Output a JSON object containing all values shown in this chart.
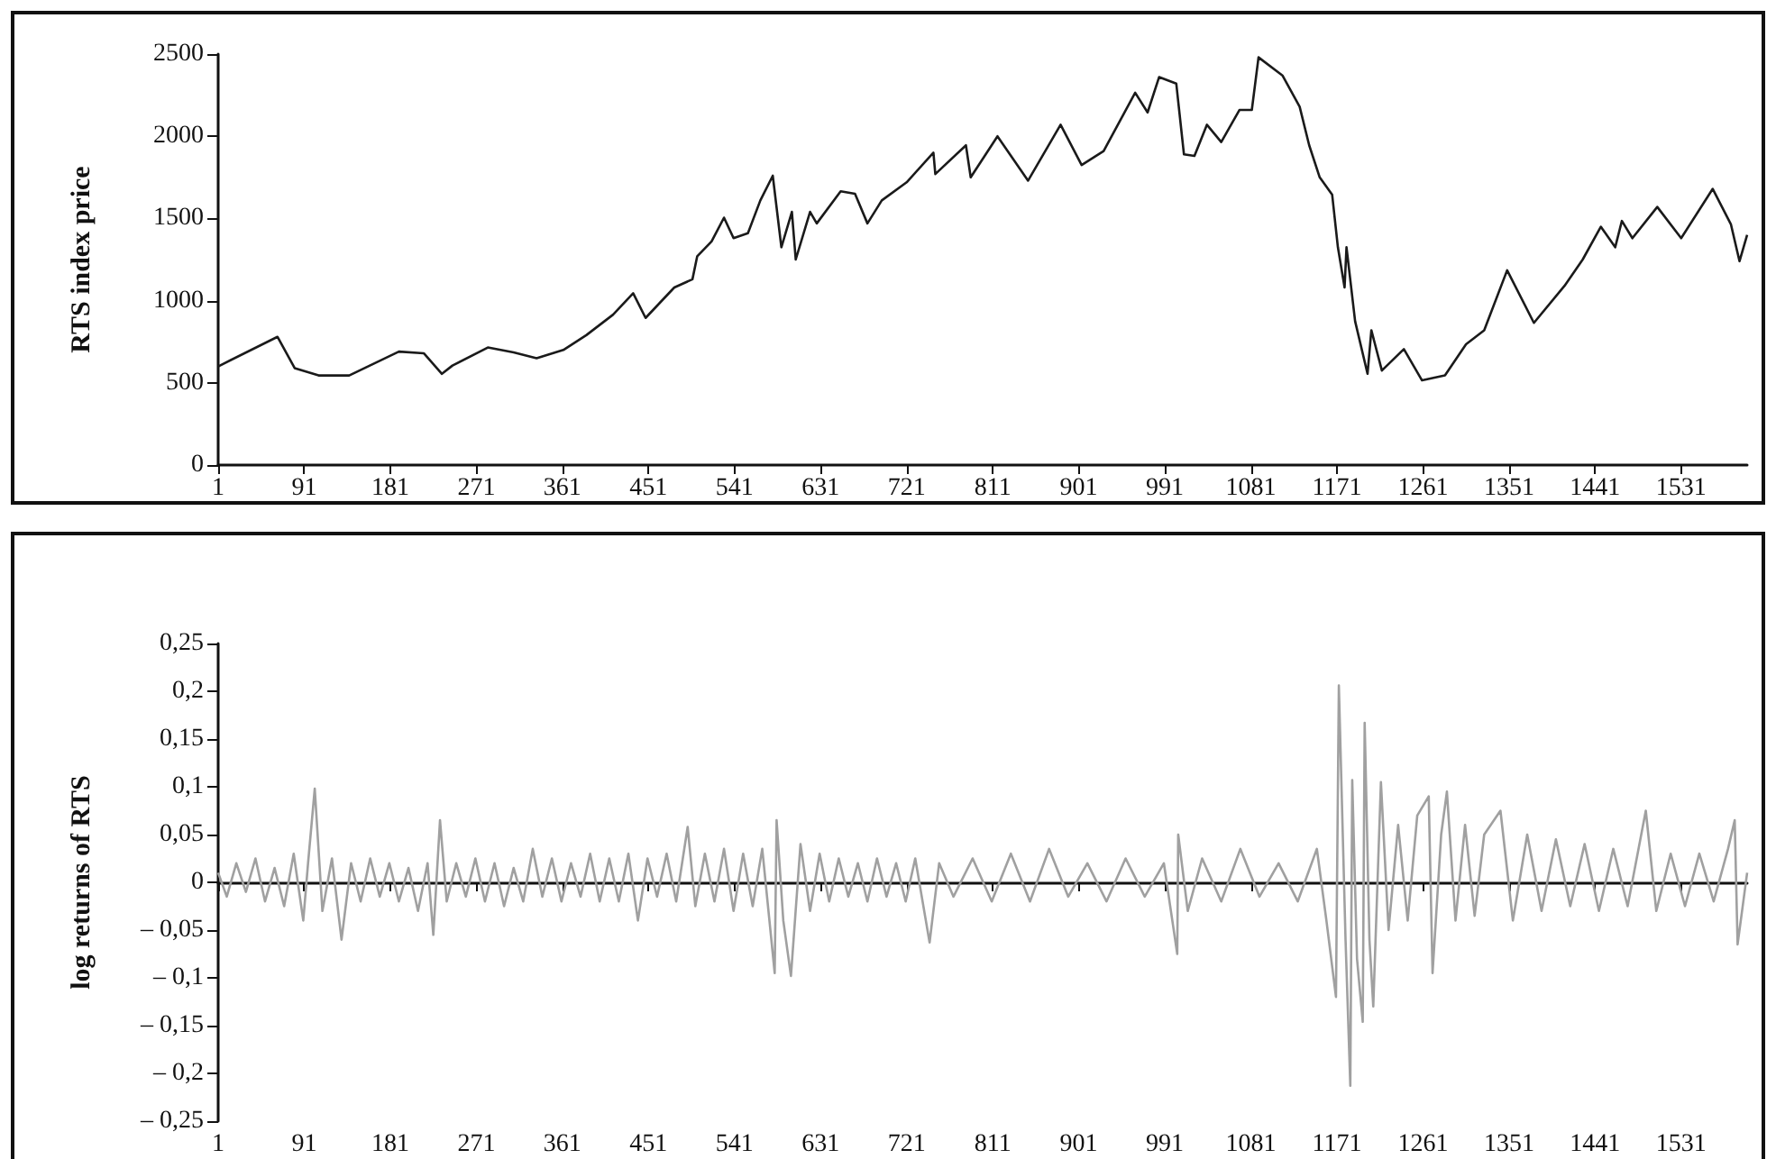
{
  "chart_data": [
    {
      "type": "line",
      "ylabel": "RTS index price",
      "xlim": [
        1,
        1600
      ],
      "xticks": [
        1,
        91,
        181,
        271,
        361,
        451,
        541,
        631,
        721,
        811,
        901,
        991,
        1081,
        1171,
        1261,
        1351,
        1441,
        1531
      ],
      "ylim": [
        0,
        2500
      ],
      "yticks": [
        0,
        500,
        1000,
        1500,
        2000,
        2500
      ],
      "marker": "none",
      "line_style": "solid",
      "x": [
        1,
        63,
        81,
        106,
        138,
        190,
        216,
        235,
        246,
        283,
        310,
        334,
        362,
        386,
        414,
        435,
        448,
        478,
        497,
        502,
        517,
        530,
        540,
        555,
        568,
        581,
        590,
        601,
        605,
        620,
        627,
        652,
        667,
        680,
        695,
        721,
        749,
        751,
        783,
        788,
        816,
        848,
        882,
        904,
        927,
        960,
        973,
        985,
        1003,
        1011,
        1022,
        1035,
        1050,
        1069,
        1082,
        1089,
        1114,
        1132,
        1142,
        1153,
        1166,
        1172,
        1179,
        1181,
        1190,
        1203,
        1207,
        1218,
        1241,
        1260,
        1284,
        1306,
        1325,
        1349,
        1377,
        1409,
        1428,
        1447,
        1462,
        1469,
        1480,
        1506,
        1531,
        1564,
        1583,
        1592,
        1600
      ],
      "series": [
        {
          "color": "#1a1a1a",
          "values": [
            600,
            780,
            590,
            545,
            545,
            690,
            680,
            555,
            605,
            715,
            685,
            650,
            700,
            790,
            915,
            1045,
            895,
            1080,
            1130,
            1270,
            1360,
            1505,
            1380,
            1410,
            1610,
            1760,
            1325,
            1540,
            1250,
            1540,
            1470,
            1665,
            1650,
            1470,
            1610,
            1720,
            1900,
            1770,
            1945,
            1750,
            2000,
            1730,
            2070,
            1825,
            1910,
            2265,
            2145,
            2360,
            2320,
            1890,
            1880,
            2070,
            1965,
            2160,
            2160,
            2480,
            2370,
            2180,
            1945,
            1750,
            1645,
            1325,
            1080,
            1325,
            875,
            555,
            820,
            575,
            705,
            515,
            545,
            735,
            820,
            1185,
            865,
            1090,
            1250,
            1450,
            1325,
            1485,
            1380,
            1570,
            1380,
            1680,
            1465,
            1240,
            1400
          ]
        }
      ]
    },
    {
      "type": "line",
      "ylabel": "log returns of RTS",
      "xlim": [
        1,
        1600
      ],
      "xticks": [
        1,
        91,
        181,
        271,
        361,
        451,
        541,
        631,
        721,
        811,
        901,
        991,
        1081,
        1171,
        1261,
        1351,
        1441,
        1531
      ],
      "ylim": [
        -0.25,
        0.25
      ],
      "yticks": [
        {
          "value": 0.25,
          "label": "0,25"
        },
        {
          "value": 0.2,
          "label": "0,2"
        },
        {
          "value": 0.15,
          "label": "0,15"
        },
        {
          "value": 0.1,
          "label": "0,1"
        },
        {
          "value": 0.05,
          "label": "0,05"
        },
        0,
        {
          "value": -0.05,
          "label": "– 0,05"
        },
        {
          "value": -0.1,
          "label": "– 0,1"
        },
        {
          "value": -0.15,
          "label": "– 0,15"
        },
        {
          "value": -0.2,
          "label": "– 0,2"
        },
        {
          "value": -0.25,
          "label": "– 0,25"
        }
      ],
      "marker": "none",
      "line_style": "solid",
      "x": [
        1,
        10,
        20,
        30,
        40,
        50,
        60,
        70,
        80,
        90,
        95,
        102,
        110,
        120,
        130,
        140,
        150,
        160,
        170,
        180,
        190,
        200,
        210,
        220,
        226,
        233,
        240,
        250,
        260,
        270,
        280,
        290,
        300,
        310,
        320,
        330,
        340,
        350,
        360,
        370,
        380,
        390,
        400,
        410,
        420,
        430,
        440,
        450,
        460,
        470,
        480,
        492,
        500,
        510,
        520,
        530,
        540,
        550,
        560,
        570,
        583,
        585,
        592,
        600,
        610,
        620,
        630,
        640,
        650,
        660,
        670,
        680,
        690,
        700,
        710,
        720,
        730,
        745,
        755,
        770,
        790,
        810,
        830,
        850,
        870,
        890,
        910,
        930,
        950,
        970,
        990,
        1004,
        1005,
        1015,
        1030,
        1050,
        1070,
        1090,
        1110,
        1130,
        1150,
        1160,
        1170,
        1173,
        1180,
        1185,
        1187,
        1192,
        1198,
        1200,
        1205,
        1209,
        1217,
        1225,
        1235,
        1245,
        1255,
        1267,
        1271,
        1280,
        1286,
        1295,
        1305,
        1315,
        1325,
        1342,
        1355,
        1370,
        1385,
        1400,
        1415,
        1430,
        1445,
        1460,
        1475,
        1494,
        1505,
        1520,
        1535,
        1550,
        1565,
        1580,
        1587,
        1590,
        1600
      ],
      "series": [
        {
          "color": "#a0a0a0",
          "values": [
            0.01,
            -0.015,
            0.02,
            -0.01,
            0.025,
            -0.02,
            0.015,
            -0.025,
            0.03,
            -0.04,
            0.02,
            0.098,
            -0.03,
            0.025,
            -0.06,
            0.02,
            -0.02,
            0.025,
            -0.015,
            0.02,
            -0.02,
            0.015,
            -0.03,
            0.02,
            -0.055,
            0.065,
            -0.02,
            0.02,
            -0.015,
            0.025,
            -0.02,
            0.02,
            -0.025,
            0.015,
            -0.02,
            0.035,
            -0.015,
            0.025,
            -0.02,
            0.02,
            -0.015,
            0.03,
            -0.02,
            0.025,
            -0.02,
            0.03,
            -0.04,
            0.025,
            -0.015,
            0.03,
            -0.02,
            0.058,
            -0.025,
            0.03,
            -0.02,
            0.035,
            -0.03,
            0.03,
            -0.025,
            0.035,
            -0.095,
            0.065,
            -0.04,
            -0.098,
            0.04,
            -0.03,
            0.03,
            -0.02,
            0.025,
            -0.015,
            0.02,
            -0.02,
            0.025,
            -0.015,
            0.02,
            -0.02,
            0.025,
            -0.063,
            0.02,
            -0.015,
            0.025,
            -0.02,
            0.03,
            -0.02,
            0.035,
            -0.015,
            0.02,
            -0.02,
            0.025,
            -0.015,
            0.02,
            -0.075,
            0.05,
            -0.03,
            0.025,
            -0.02,
            0.035,
            -0.015,
            0.02,
            -0.02,
            0.035,
            -0.04,
            -0.12,
            0.206,
            -0.06,
            -0.213,
            0.107,
            -0.08,
            -0.146,
            0.167,
            -0.06,
            -0.13,
            0.105,
            -0.05,
            0.06,
            -0.04,
            0.07,
            0.09,
            -0.095,
            0.05,
            0.095,
            -0.04,
            0.06,
            -0.035,
            0.05,
            0.075,
            -0.04,
            0.05,
            -0.03,
            0.045,
            -0.025,
            0.04,
            -0.03,
            0.035,
            -0.025,
            0.075,
            -0.03,
            0.03,
            -0.025,
            0.03,
            -0.02,
            0.035,
            0.065,
            -0.065,
            0.01
          ]
        }
      ]
    }
  ]
}
